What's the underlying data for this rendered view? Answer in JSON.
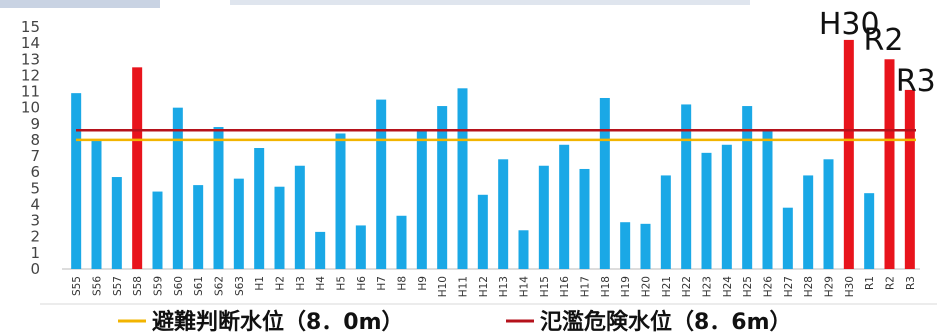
{
  "chart_data": {
    "type": "bar",
    "categories": [
      "S55",
      "S56",
      "S57",
      "S58",
      "S59",
      "S60",
      "S61",
      "S62",
      "S63",
      "H1",
      "H2",
      "H3",
      "H4",
      "H5",
      "H6",
      "H7",
      "H8",
      "H9",
      "H10",
      "H11",
      "H12",
      "H13",
      "H14",
      "H15",
      "H16",
      "H17",
      "H18",
      "H19",
      "H20",
      "H21",
      "H22",
      "H23",
      "H24",
      "H25",
      "H26",
      "H27",
      "H28",
      "H29",
      "H30",
      "R1",
      "R2",
      "R3"
    ],
    "values": [
      10.9,
      8.0,
      5.7,
      12.5,
      4.8,
      10.0,
      5.2,
      8.8,
      5.6,
      7.5,
      5.1,
      6.4,
      2.3,
      8.4,
      2.7,
      10.5,
      3.3,
      8.6,
      10.1,
      11.2,
      4.6,
      6.8,
      2.4,
      6.4,
      7.7,
      6.2,
      10.6,
      2.9,
      2.8,
      5.8,
      10.2,
      7.2,
      7.7,
      10.1,
      8.6,
      3.8,
      5.8,
      6.8,
      14.2,
      4.7,
      13.0,
      11.1
    ],
    "highlight_color": "#e8141c",
    "bar_color": "#1aa8e6",
    "highlighted_categories": [
      "S58",
      "H30",
      "R2",
      "R3"
    ],
    "ylim": [
      0,
      15
    ],
    "yticks": [
      "0",
      "1",
      "2",
      "3",
      "4",
      "5",
      "6",
      "7",
      "8",
      "9",
      "10",
      "11",
      "12",
      "13",
      "14",
      "15"
    ],
    "grid": false,
    "reference_lines": [
      {
        "name": "避難判断水位（8．0m）",
        "value": 8.0,
        "color": "#f2b400"
      },
      {
        "name": "氾濫危険水位（8．6m）",
        "value": 8.6,
        "color": "#b5121b"
      }
    ],
    "annotations": [
      {
        "text": "H30",
        "category": "H30"
      },
      {
        "text": "R2",
        "category": "R2"
      },
      {
        "text": "R3",
        "category": "R3"
      }
    ],
    "legend_placement": "bottom"
  }
}
